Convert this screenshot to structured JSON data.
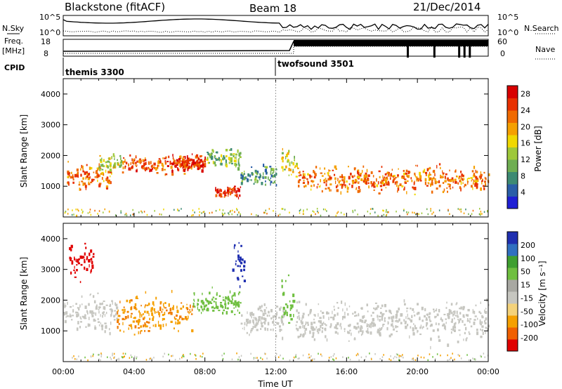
{
  "header": {
    "title": "Blackstone (fitACF)",
    "beam": "Beam 18",
    "date": "21/Dec/2014"
  },
  "status_panels": {
    "nsky_label": "N.Sky",
    "nsearch_label": "N.Search",
    "nsky_ticks": [
      "10^5",
      "10^0"
    ],
    "freq_label_line1": "Freq.",
    "freq_label_line2": "[MHz]",
    "freq_ticks": [
      "18",
      "8"
    ],
    "nave_label": "Nave",
    "nave_ticks": [
      "60",
      "0"
    ],
    "cpid_label": "CPID",
    "programs": [
      {
        "name": "themis 3300",
        "start_hour": 0.0
      },
      {
        "name": "twofsound 3501",
        "start_hour": 12.0
      }
    ]
  },
  "colors": {
    "power": [
      "#1f1fd4",
      "#2a5ea8",
      "#3d8a73",
      "#6fae52",
      "#9ec83a",
      "#f0d800",
      "#f5a000",
      "#f06a00",
      "#e83000",
      "#d80000"
    ],
    "velocity": [
      "#e00000",
      "#f06000",
      "#f5a000",
      "#f4d27a",
      "#c6c6c0",
      "#a8a8a2",
      "#6fbf40",
      "#3f9f30",
      "#3070c0",
      "#1f2fb0"
    ],
    "velocity_mapped": [
      "#e00000",
      "#f07a00",
      "#f5a000",
      "#c6c6c0",
      "#6fbf40",
      "#3f9f30",
      "#1f2fb0"
    ]
  },
  "chart_data": [
    {
      "type": "heatmap",
      "name": "power",
      "ylabel": "Slant Range [km]",
      "xlabel": "",
      "xlim": [
        0,
        24
      ],
      "ylim": [
        0,
        4500
      ],
      "yticks": [
        "1000",
        "2000",
        "3000",
        "4000"
      ],
      "colorbar": {
        "label": "Power [dB]",
        "ticks": [
          "4",
          "8",
          "12",
          "16",
          "20",
          "24",
          "28"
        ],
        "range": [
          0,
          30
        ]
      },
      "features": [
        {
          "hour_start": 0.2,
          "hour_end": 2.7,
          "range_center": 1350,
          "range_width": 550,
          "value": 22
        },
        {
          "hour_start": 2.0,
          "hour_end": 3.3,
          "range_center": 1800,
          "range_width": 350,
          "value": 14
        },
        {
          "hour_start": 3.3,
          "hour_end": 7.8,
          "range_center": 1750,
          "range_width": 350,
          "value": 24
        },
        {
          "hour_start": 6.0,
          "hour_end": 8.0,
          "range_center": 1800,
          "range_width": 300,
          "value": 26
        },
        {
          "hour_start": 8.0,
          "hour_end": 10.0,
          "range_center": 1950,
          "range_width": 350,
          "value": 12
        },
        {
          "hour_start": 8.5,
          "hour_end": 10.0,
          "range_center": 850,
          "range_width": 250,
          "value": 26
        },
        {
          "hour_start": 10.0,
          "hour_end": 12.0,
          "range_center": 1400,
          "range_width": 400,
          "value": 8
        },
        {
          "hour_start": 12.3,
          "hour_end": 13.2,
          "range_center": 1700,
          "range_width": 700,
          "value": 16
        },
        {
          "hour_start": 13.2,
          "hour_end": 24.0,
          "range_center": 1250,
          "range_width": 500,
          "value": 22
        }
      ]
    },
    {
      "type": "heatmap",
      "name": "velocity",
      "ylabel": "Slant Range [km]",
      "xlabel": "Time UT",
      "xlim": [
        0,
        24
      ],
      "ylim": [
        0,
        4500
      ],
      "xticks": [
        "00:00",
        "04:00",
        "08:00",
        "12:00",
        "16:00",
        "20:00",
        "00:00"
      ],
      "yticks": [
        "1000",
        "2000",
        "3000",
        "4000"
      ],
      "colorbar": {
        "label": "Velocity [m s⁻¹]",
        "ticks": [
          "200",
          "100",
          "50",
          "15",
          "-15",
          "-50",
          "-100",
          "-200"
        ],
        "range": [
          -250,
          250
        ]
      },
      "features": [
        {
          "hour_start": 0.0,
          "hour_end": 3.0,
          "range_center": 1600,
          "range_width": 700,
          "value": -10
        },
        {
          "hour_start": 0.3,
          "hour_end": 1.7,
          "range_center": 3300,
          "range_width": 700,
          "value": -200
        },
        {
          "hour_start": 3.0,
          "hour_end": 7.3,
          "range_center": 1550,
          "range_width": 800,
          "value": -70
        },
        {
          "hour_start": 7.3,
          "hour_end": 10.0,
          "range_center": 1950,
          "range_width": 500,
          "value": 60
        },
        {
          "hour_start": 9.5,
          "hour_end": 10.2,
          "range_center": 3300,
          "range_width": 900,
          "value": 200
        },
        {
          "hour_start": 10.0,
          "hour_end": 12.5,
          "range_center": 1400,
          "range_width": 600,
          "value": -10
        },
        {
          "hour_start": 12.3,
          "hour_end": 13.0,
          "range_center": 2000,
          "range_width": 1200,
          "value": 60
        },
        {
          "hour_start": 13.0,
          "hour_end": 24.0,
          "range_center": 1350,
          "range_width": 800,
          "value": 0
        }
      ]
    }
  ]
}
